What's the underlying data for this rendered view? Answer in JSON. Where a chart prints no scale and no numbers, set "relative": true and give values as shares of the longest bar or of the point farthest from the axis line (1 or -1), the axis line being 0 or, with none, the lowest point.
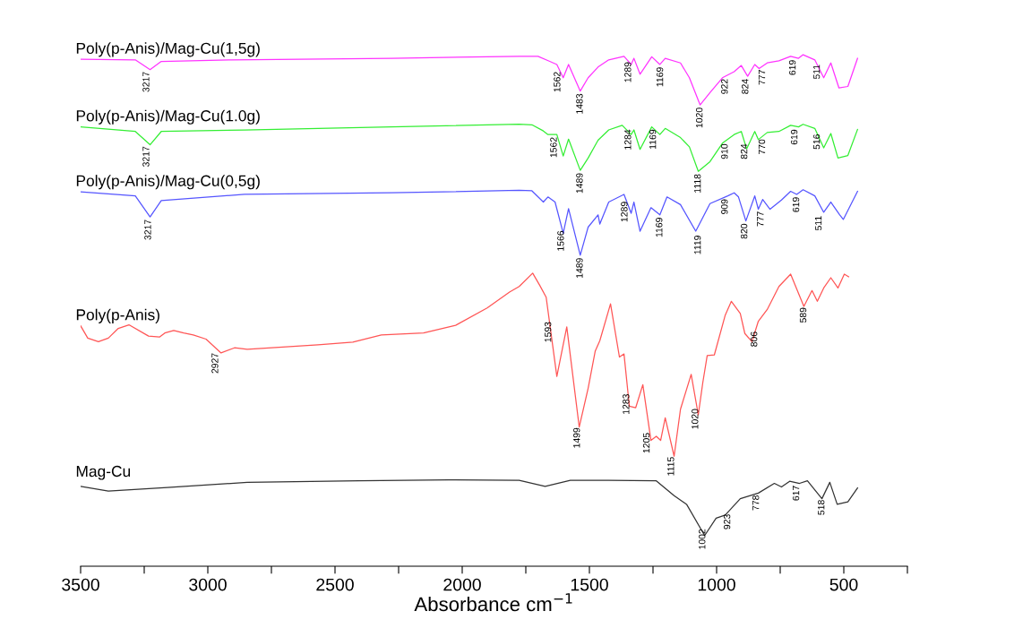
{
  "chart_data": {
    "type": "line",
    "relative": true,
    "xlabel": "Absorbance cm$^{−1}$",
    "xlim": [
      3500,
      250
    ],
    "xticks": [
      3500,
      {
        "value": 3250,
        "label": null
      },
      3000,
      {
        "value": 2750,
        "label": null
      },
      2500,
      {
        "value": 2250,
        "label": null
      },
      2000,
      {
        "value": 1750,
        "label": null
      },
      1500,
      {
        "value": 1250,
        "label": null
      },
      1000,
      {
        "value": 750,
        "label": null
      },
      500,
      {
        "value": 250,
        "label": null
      }
    ],
    "tick_labels": "x",
    "grid": false,
    "legend": false,
    "series": [
      {
        "name": "Poly(p-Anis)/Mag-Cu(1,5g)",
        "color": "#ff33ff",
        "x": [
          3500,
          3285,
          3227,
          3183,
          2907,
          2279,
          1776,
          1702,
          1660,
          1628,
          1603,
          1582,
          1536,
          1505,
          1466,
          1424,
          1364,
          1336,
          1325,
          1301,
          1255,
          1223,
          1202,
          1142,
          1107,
          1065,
          1026,
          977,
          931,
          903,
          878,
          850,
          833,
          801,
          755,
          709,
          678,
          660,
          614,
          579,
          551,
          519,
          484,
          446
        ],
        "values": [
          0.991,
          0.99,
          0.971,
          0.987,
          0.99,
          0.993,
          0.997,
          0.997,
          0.988,
          0.981,
          0.955,
          0.981,
          0.929,
          0.955,
          0.976,
          0.99,
          0.997,
          0.981,
          0.993,
          0.962,
          0.996,
          0.981,
          0.993,
          0.984,
          0.955,
          0.902,
          0.926,
          0.955,
          0.967,
          0.979,
          0.958,
          0.981,
          0.973,
          0.984,
          0.988,
          0.997,
          0.993,
          1.0,
          0.99,
          0.955,
          0.984,
          0.935,
          0.938,
          0.993
        ]
      },
      {
        "name": "Poly(p-Anis)/Mag-Cu(1.0g)",
        "color": "#33ee33",
        "x": [
          3500,
          3285,
          3227,
          3183,
          2856,
          2279,
          1776,
          1726,
          1681,
          1663,
          1628,
          1603,
          1582,
          1536,
          1505,
          1466,
          1424,
          1371,
          1336,
          1325,
          1301,
          1255,
          1223,
          1202,
          1142,
          1107,
          1072,
          1026,
          977,
          931,
          903,
          882,
          850,
          836,
          801,
          755,
          709,
          678,
          660,
          614,
          579,
          551,
          523,
          484,
          446
        ],
        "values": [
          0.859,
          0.85,
          0.824,
          0.85,
          0.853,
          0.859,
          0.864,
          0.863,
          0.851,
          0.844,
          0.844,
          0.802,
          0.835,
          0.774,
          0.798,
          0.833,
          0.853,
          0.862,
          0.844,
          0.853,
          0.815,
          0.859,
          0.844,
          0.856,
          0.838,
          0.82,
          0.772,
          0.791,
          0.827,
          0.844,
          0.85,
          0.816,
          0.85,
          0.834,
          0.848,
          0.85,
          0.862,
          0.859,
          0.864,
          0.856,
          0.818,
          0.846,
          0.798,
          0.803,
          0.854
        ]
      },
      {
        "name": "Poly(p-Anis)/Mag-Cu(0,5g)",
        "color": "#5555ff",
        "x": [
          3500,
          3285,
          3227,
          3183,
          2856,
          2279,
          1776,
          1726,
          1681,
          1663,
          1635,
          1603,
          1582,
          1536,
          1505,
          1466,
          1459,
          1424,
          1364,
          1336,
          1325,
          1301,
          1258,
          1223,
          1195,
          1142,
          1082,
          1026,
          956,
          931,
          914,
          885,
          850,
          836,
          819,
          790,
          745,
          709,
          685,
          660,
          614,
          579,
          551,
          516,
          502,
          446
        ],
        "values": [
          0.732,
          0.724,
          0.683,
          0.715,
          0.727,
          0.73,
          0.735,
          0.734,
          0.712,
          0.722,
          0.712,
          0.651,
          0.699,
          0.608,
          0.663,
          0.687,
          0.669,
          0.712,
          0.727,
          0.69,
          0.712,
          0.655,
          0.701,
          0.687,
          0.722,
          0.707,
          0.655,
          0.709,
          0.724,
          0.73,
          0.722,
          0.675,
          0.724,
          0.698,
          0.717,
          0.698,
          0.716,
          0.733,
          0.727,
          0.736,
          0.724,
          0.692,
          0.712,
          0.687,
          0.678,
          0.733
        ]
      },
      {
        "name": "Poly(p-Anis)",
        "color": "#ff5555",
        "x": [
          3500,
          3472,
          3430,
          3391,
          3352,
          3310,
          3233,
          3190,
          3169,
          3134,
          3095,
          3057,
          3007,
          2948,
          2895,
          2845,
          2567,
          2430,
          2318,
          2152,
          2026,
          1902,
          1814,
          1776,
          1723,
          1695,
          1670,
          1628,
          1589,
          1540,
          1505,
          1477,
          1459,
          1417,
          1382,
          1364,
          1343,
          1318,
          1290,
          1258,
          1237,
          1220,
          1202,
          1167,
          1142,
          1100,
          1072,
          1054,
          1037,
          1009,
          966,
          942,
          907,
          889,
          861,
          836,
          801,
          755,
          709,
          657,
          625,
          604,
          579,
          551,
          523,
          498,
          481
        ],
        "values": [
          0.47,
          0.446,
          0.439,
          0.446,
          0.465,
          0.472,
          0.45,
          0.448,
          0.456,
          0.461,
          0.456,
          0.452,
          0.444,
          0.417,
          0.427,
          0.424,
          0.433,
          0.438,
          0.452,
          0.456,
          0.471,
          0.505,
          0.536,
          0.547,
          0.573,
          0.549,
          0.526,
          0.371,
          0.468,
          0.272,
          0.348,
          0.421,
          0.441,
          0.513,
          0.409,
          0.415,
          0.313,
          0.31,
          0.355,
          0.246,
          0.254,
          0.246,
          0.29,
          0.215,
          0.307,
          0.375,
          0.296,
          0.36,
          0.412,
          0.413,
          0.491,
          0.518,
          0.494,
          0.455,
          0.439,
          0.479,
          0.502,
          0.547,
          0.571,
          0.508,
          0.539,
          0.518,
          0.544,
          0.564,
          0.544,
          0.571,
          0.566
        ]
      },
      {
        "name": "Mag-Cu",
        "color": "#333333",
        "x": [
          3500,
          3391,
          3159,
          2845,
          2406,
          2054,
          1776,
          1674,
          1575,
          1424,
          1237,
          1167,
          1118,
          1047,
          1002,
          966,
          907,
          836,
          773,
          745,
          713,
          674,
          643,
          586,
          555,
          526,
          484,
          446
        ],
        "values": [
          0.156,
          0.147,
          0.154,
          0.164,
          0.167,
          0.169,
          0.168,
          0.156,
          0.168,
          0.168,
          0.167,
          0.138,
          0.121,
          0.06,
          0.094,
          0.1,
          0.132,
          0.143,
          0.162,
          0.155,
          0.166,
          0.162,
          0.167,
          0.132,
          0.164,
          0.121,
          0.126,
          0.153
        ]
      }
    ],
    "annotations": [
      {
        "text": "3217",
        "x": 3240,
        "y": 0.972
      },
      {
        "text": "1562",
        "x": 1624,
        "y": 0.972
      },
      {
        "text": "1483",
        "x": 1536,
        "y": 0.929
      },
      {
        "text": "1289",
        "x": 1346,
        "y": 0.991
      },
      {
        "text": "1169",
        "x": 1220,
        "y": 0.981
      },
      {
        "text": "1020",
        "x": 1065,
        "y": 0.902
      },
      {
        "text": "922",
        "x": 966,
        "y": 0.958
      },
      {
        "text": "824",
        "x": 885,
        "y": 0.958
      },
      {
        "text": "777",
        "x": 819,
        "y": 0.976
      },
      {
        "text": "619",
        "x": 699,
        "y": 0.995
      },
      {
        "text": "511",
        "x": 604,
        "y": 0.986
      },
      {
        "text": "3217",
        "x": 3240,
        "y": 0.826
      },
      {
        "text": "1562",
        "x": 1638,
        "y": 0.844
      },
      {
        "text": "1489",
        "x": 1536,
        "y": 0.774
      },
      {
        "text": "1284",
        "x": 1346,
        "y": 0.859
      },
      {
        "text": "1169",
        "x": 1248,
        "y": 0.859
      },
      {
        "text": "1118",
        "x": 1072,
        "y": 0.772
      },
      {
        "text": "910",
        "x": 966,
        "y": 0.831
      },
      {
        "text": "824",
        "x": 889,
        "y": 0.831
      },
      {
        "text": "770",
        "x": 819,
        "y": 0.84
      },
      {
        "text": "619",
        "x": 692,
        "y": 0.859
      },
      {
        "text": "516",
        "x": 604,
        "y": 0.85
      },
      {
        "text": "3217",
        "x": 3233,
        "y": 0.683
      },
      {
        "text": "1566",
        "x": 1610,
        "y": 0.661
      },
      {
        "text": "1489",
        "x": 1536,
        "y": 0.608
      },
      {
        "text": "1289",
        "x": 1360,
        "y": 0.718
      },
      {
        "text": "1169",
        "x": 1223,
        "y": 0.687
      },
      {
        "text": "1119",
        "x": 1072,
        "y": 0.652
      },
      {
        "text": "909",
        "x": 966,
        "y": 0.723
      },
      {
        "text": "820",
        "x": 889,
        "y": 0.675
      },
      {
        "text": "777",
        "x": 825,
        "y": 0.699
      },
      {
        "text": "619",
        "x": 685,
        "y": 0.727
      },
      {
        "text": "511",
        "x": 597,
        "y": 0.69
      },
      {
        "text": "2927",
        "x": 2969,
        "y": 0.422
      },
      {
        "text": "1593",
        "x": 1660,
        "y": 0.483
      },
      {
        "text": "1499",
        "x": 1547,
        "y": 0.276
      },
      {
        "text": "1283",
        "x": 1353,
        "y": 0.342
      },
      {
        "text": "1205",
        "x": 1273,
        "y": 0.266
      },
      {
        "text": "1115",
        "x": 1177,
        "y": 0.219
      },
      {
        "text": "1020",
        "x": 1082,
        "y": 0.313
      },
      {
        "text": "806",
        "x": 850,
        "y": 0.464
      },
      {
        "text": "589",
        "x": 657,
        "y": 0.511
      },
      {
        "text": "1002",
        "x": 1054,
        "y": 0.078
      },
      {
        "text": "923",
        "x": 956,
        "y": 0.107
      },
      {
        "text": "778",
        "x": 843,
        "y": 0.144
      },
      {
        "text": "617",
        "x": 685,
        "y": 0.163
      },
      {
        "text": "518",
        "x": 586,
        "y": 0.135
      }
    ]
  }
}
